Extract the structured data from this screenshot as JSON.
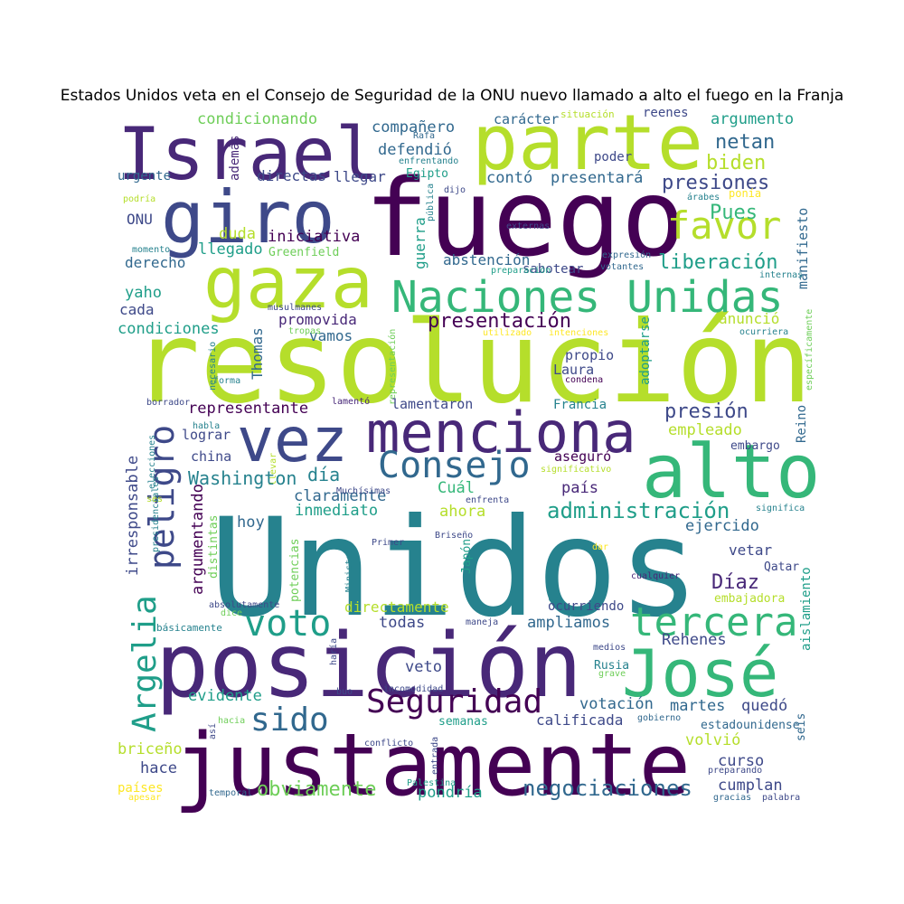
{
  "title": "Estados Unidos veta en el Consejo de Seguridad de la ONU nuevo llamado a alto el fuego en la Franja",
  "palette": {
    "dark_purple": "#440154",
    "purple": "#482878",
    "indigo": "#3e4989",
    "blue": "#31688e",
    "teal": "#26828e",
    "cyan_green": "#1f9e89",
    "green": "#35b779",
    "light_green": "#6ece58",
    "lime": "#b5de2b",
    "yellow": "#fde725"
  },
  "words": [
    {
      "text": "Unidos",
      "color": "teal"
    },
    {
      "text": "resolución",
      "color": "lime"
    },
    {
      "text": "fuego",
      "color": "dark_purple"
    },
    {
      "text": "justamente",
      "color": "dark_purple"
    },
    {
      "text": "posición",
      "color": "purple"
    },
    {
      "text": "parte",
      "color": "lime"
    },
    {
      "text": "Israel",
      "color": "purple"
    },
    {
      "text": "giro",
      "color": "indigo"
    },
    {
      "text": "gaza",
      "color": "lime"
    },
    {
      "text": "alto",
      "color": "green"
    },
    {
      "text": "menciona",
      "color": "purple"
    },
    {
      "text": "vez",
      "color": "indigo"
    },
    {
      "text": "José",
      "color": "green"
    },
    {
      "text": "Naciones Unidas",
      "color": "green"
    },
    {
      "text": "Consejo",
      "color": "blue"
    },
    {
      "text": "Seguridad",
      "color": "dark_purple"
    },
    {
      "text": "tercera",
      "color": "green"
    },
    {
      "text": "voto",
      "color": "cyan_green"
    },
    {
      "text": "sido",
      "color": "blue"
    },
    {
      "text": "favor",
      "color": "lime"
    },
    {
      "text": "Argelia",
      "color": "cyan_green"
    },
    {
      "text": "peligro",
      "color": "indigo"
    },
    {
      "text": "presentación",
      "color": "dark_purple"
    },
    {
      "text": "administración",
      "color": "cyan_green"
    },
    {
      "text": "negociaciones",
      "color": "blue"
    },
    {
      "text": "obviamente",
      "color": "light_green"
    },
    {
      "text": "presiones",
      "color": "indigo"
    },
    {
      "text": "liberación",
      "color": "cyan_green"
    },
    {
      "text": "netan",
      "color": "blue"
    },
    {
      "text": "biden",
      "color": "lime"
    },
    {
      "text": "Pues",
      "color": "green"
    },
    {
      "text": "argumento",
      "color": "cyan_green"
    },
    {
      "text": "condicionando",
      "color": "light_green"
    },
    {
      "text": "compañero",
      "color": "blue"
    },
    {
      "text": "carácter",
      "color": "blue"
    },
    {
      "text": "reenes",
      "color": "indigo"
    },
    {
      "text": "situación",
      "color": "lime"
    },
    {
      "text": "defendió",
      "color": "blue"
    },
    {
      "text": "contó",
      "color": "blue"
    },
    {
      "text": "presentará",
      "color": "blue"
    },
    {
      "text": "manifiesto",
      "color": "blue"
    },
    {
      "text": "además",
      "color": "purple"
    },
    {
      "text": "directas",
      "color": "indigo"
    },
    {
      "text": "llegar",
      "color": "indigo"
    },
    {
      "text": "Egipto",
      "color": "cyan_green"
    },
    {
      "text": "dijo",
      "color": "indigo"
    },
    {
      "text": "poder",
      "color": "indigo"
    },
    {
      "text": "Rafa",
      "color": "blue"
    },
    {
      "text": "enfrentando",
      "color": "teal"
    },
    {
      "text": "urgente",
      "color": "blue"
    },
    {
      "text": "ONU",
      "color": "indigo"
    },
    {
      "text": "podría",
      "color": "lime"
    },
    {
      "text": "momento",
      "color": "teal"
    },
    {
      "text": "pública",
      "color": "teal"
    },
    {
      "text": "guerra",
      "color": "cyan_green"
    },
    {
      "text": "externas",
      "color": "indigo"
    },
    {
      "text": "árabes",
      "color": "teal"
    },
    {
      "text": "ponía",
      "color": "yellow"
    },
    {
      "text": "iniciativa",
      "color": "dark_purple"
    },
    {
      "text": "duda",
      "color": "lime"
    },
    {
      "text": "llegado",
      "color": "cyan_green"
    },
    {
      "text": "Greenfield",
      "color": "light_green"
    },
    {
      "text": "abstención",
      "color": "blue"
    },
    {
      "text": "derecho",
      "color": "blue"
    },
    {
      "text": "expresión",
      "color": "blue"
    },
    {
      "text": "votantes",
      "color": "blue"
    },
    {
      "text": "sabotear",
      "color": "indigo"
    },
    {
      "text": "preparación",
      "color": "cyan_green"
    },
    {
      "text": "internas",
      "color": "teal"
    },
    {
      "text": "yaho",
      "color": "cyan_green"
    },
    {
      "text": "cada",
      "color": "indigo"
    },
    {
      "text": "condiciones",
      "color": "cyan_green"
    },
    {
      "text": "promovida",
      "color": "purple"
    },
    {
      "text": "vamos",
      "color": "blue"
    },
    {
      "text": "musulmanes",
      "color": "indigo"
    },
    {
      "text": "tropas",
      "color": "light_green"
    },
    {
      "text": "utilizado",
      "color": "yellow"
    },
    {
      "text": "intenciones",
      "color": "yellow"
    },
    {
      "text": "anunció",
      "color": "lime"
    },
    {
      "text": "ocurriera",
      "color": "teal"
    },
    {
      "text": "necesario",
      "color": "teal"
    },
    {
      "text": "Thomas",
      "color": "blue"
    },
    {
      "text": "representación",
      "color": "light_green"
    },
    {
      "text": "propio",
      "color": "indigo"
    },
    {
      "text": "Laura",
      "color": "indigo"
    },
    {
      "text": "condena",
      "color": "dark_purple"
    },
    {
      "text": "adoptarse",
      "color": "cyan_green"
    },
    {
      "text": "específicamente",
      "color": "light_green"
    },
    {
      "text": "forma",
      "color": "teal"
    },
    {
      "text": "borrador",
      "color": "indigo"
    },
    {
      "text": "lamentó",
      "color": "purple"
    },
    {
      "text": "lamentaron",
      "color": "indigo"
    },
    {
      "text": "Francia",
      "color": "teal"
    },
    {
      "text": "representante",
      "color": "dark_purple"
    },
    {
      "text": "presión",
      "color": "indigo"
    },
    {
      "text": "empleado",
      "color": "lime"
    },
    {
      "text": "Reino",
      "color": "blue"
    },
    {
      "text": "elecciones",
      "color": "teal"
    },
    {
      "text": "habla",
      "color": "teal"
    },
    {
      "text": "lograr",
      "color": "indigo"
    },
    {
      "text": "llevar",
      "color": "lime"
    },
    {
      "text": "embargo",
      "color": "indigo"
    },
    {
      "text": "china",
      "color": "indigo"
    },
    {
      "text": "aseguró",
      "color": "dark_purple"
    },
    {
      "text": "significativo",
      "color": "lime"
    },
    {
      "text": "Washington",
      "color": "teal"
    },
    {
      "text": "día",
      "color": "teal"
    },
    {
      "text": "irresponsable",
      "color": "indigo"
    },
    {
      "text": "claramente",
      "color": "blue"
    },
    {
      "text": "Muchísimas",
      "color": "indigo"
    },
    {
      "text": "Cuál",
      "color": "green"
    },
    {
      "text": "país",
      "color": "purple"
    },
    {
      "text": "presidenciales",
      "color": "teal"
    },
    {
      "text": "ses",
      "color": "lime"
    },
    {
      "text": "argumentando",
      "color": "dark_purple"
    },
    {
      "text": "inmediato",
      "color": "cyan_green"
    },
    {
      "text": "ahora",
      "color": "lime"
    },
    {
      "text": "enfrenta",
      "color": "indigo"
    },
    {
      "text": "ejercido",
      "color": "blue"
    },
    {
      "text": "significa",
      "color": "teal"
    },
    {
      "text": "hoy",
      "color": "blue"
    },
    {
      "text": "distintas",
      "color": "light_green"
    },
    {
      "text": "potencias",
      "color": "light_green"
    },
    {
      "text": "Briseño",
      "color": "indigo"
    },
    {
      "text": "Primer",
      "color": "indigo"
    },
    {
      "text": "Japón",
      "color": "cyan_green"
    },
    {
      "text": "Ministro",
      "color": "teal"
    },
    {
      "text": "dar",
      "color": "yellow"
    },
    {
      "text": "vetar",
      "color": "indigo"
    },
    {
      "text": "Díaz",
      "color": "purple"
    },
    {
      "text": "Qatar",
      "color": "indigo"
    },
    {
      "text": "César",
      "color": "teal"
    },
    {
      "text": "cualquier",
      "color": "purple"
    },
    {
      "text": "aislamiento",
      "color": "cyan_green"
    },
    {
      "text": "embajadora",
      "color": "lime"
    },
    {
      "text": "absolutamente",
      "color": "indigo"
    },
    {
      "text": "dice",
      "color": "light_green"
    },
    {
      "text": "directamente",
      "color": "lime"
    },
    {
      "text": "ocurriendo",
      "color": "indigo"
    },
    {
      "text": "todas",
      "color": "indigo"
    },
    {
      "text": "ampliamos",
      "color": "blue"
    },
    {
      "text": "básicamente",
      "color": "teal"
    },
    {
      "text": "maneja",
      "color": "indigo"
    },
    {
      "text": "Rehenes",
      "color": "indigo"
    },
    {
      "text": "medios",
      "color": "indigo"
    },
    {
      "text": "haría",
      "color": "indigo"
    },
    {
      "text": "veto",
      "color": "indigo"
    },
    {
      "text": "Rusia",
      "color": "teal"
    },
    {
      "text": "grave",
      "color": "light_green"
    },
    {
      "text": "incomodidad",
      "color": "indigo"
    },
    {
      "text": "evidente",
      "color": "cyan_green"
    },
    {
      "text": "buo",
      "color": "indigo"
    },
    {
      "text": "votación",
      "color": "blue"
    },
    {
      "text": "martes",
      "color": "blue"
    },
    {
      "text": "quedó",
      "color": "indigo"
    },
    {
      "text": "hacia",
      "color": "light_green"
    },
    {
      "text": "así",
      "color": "indigo"
    },
    {
      "text": "semanas",
      "color": "cyan_green"
    },
    {
      "text": "calificada",
      "color": "indigo"
    },
    {
      "text": "gobierno",
      "color": "blue"
    },
    {
      "text": "estadounidense",
      "color": "blue"
    },
    {
      "text": "seis",
      "color": "blue"
    },
    {
      "text": "briceño",
      "color": "lime"
    },
    {
      "text": "conflicto",
      "color": "indigo"
    },
    {
      "text": "volvió",
      "color": "lime"
    },
    {
      "text": "hace",
      "color": "indigo"
    },
    {
      "text": "entrada",
      "color": "indigo"
    },
    {
      "text": "curso",
      "color": "indigo"
    },
    {
      "text": "preparando",
      "color": "indigo"
    },
    {
      "text": "cumplan",
      "color": "indigo"
    },
    {
      "text": "países",
      "color": "yellow"
    },
    {
      "text": "apesar",
      "color": "yellow"
    },
    {
      "text": "temporal",
      "color": "blue"
    },
    {
      "text": "Palestina",
      "color": "cyan_green"
    },
    {
      "text": "pondría",
      "color": "cyan_green"
    },
    {
      "text": "gracias",
      "color": "blue"
    },
    {
      "text": "palabra",
      "color": "indigo"
    }
  ]
}
